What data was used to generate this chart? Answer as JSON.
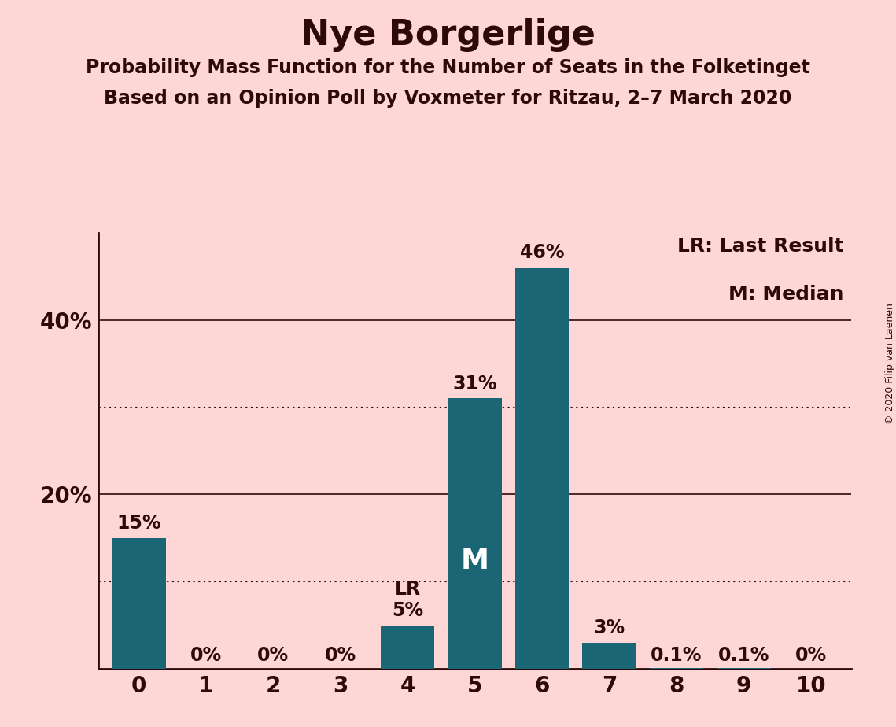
{
  "title": "Nye Borgerlige",
  "subtitle1": "Probability Mass Function for the Number of Seats in the Folketinget",
  "subtitle2": "Based on an Opinion Poll by Voxmeter for Ritzau, 2–7 March 2020",
  "copyright": "© 2020 Filip van Laenen",
  "categories": [
    0,
    1,
    2,
    3,
    4,
    5,
    6,
    7,
    8,
    9,
    10
  ],
  "values": [
    15,
    0,
    0,
    0,
    5,
    31,
    46,
    3,
    0.1,
    0.1,
    0
  ],
  "labels": [
    "15%",
    "0%",
    "0%",
    "0%",
    "5%",
    "31%",
    "46%",
    "3%",
    "0.1%",
    "0.1%",
    "0%"
  ],
  "bar_color": "#1a6674",
  "background_color": "#ffd6d6",
  "text_color": "#2d0a0a",
  "ylim": [
    0,
    50
  ],
  "yticks": [
    20,
    40
  ],
  "ytick_labels": [
    "20%",
    "40%"
  ],
  "solid_gridlines": [
    20,
    40
  ],
  "dotted_gridlines": [
    10,
    30
  ],
  "lr_seat": 4,
  "median_seat": 5,
  "legend_lr": "LR: Last Result",
  "legend_m": "M: Median",
  "title_fontsize": 32,
  "subtitle_fontsize": 17,
  "axis_fontsize": 20,
  "bar_label_fontsize": 17,
  "legend_fontsize": 18,
  "copyright_fontsize": 9
}
